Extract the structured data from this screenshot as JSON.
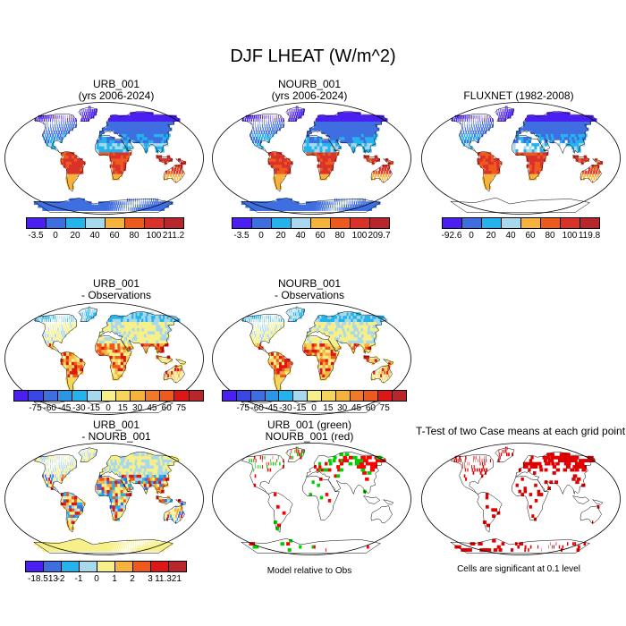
{
  "main_title": "DJF LHEAT (W/m^2)",
  "panels": [
    {
      "id": "p1",
      "title1": "URB_001",
      "title2": "(yrs 2006-2024)",
      "scheme": "abs",
      "colorbar": {
        "ticks": [
          "-3.5",
          "0",
          "20",
          "40",
          "60",
          "80",
          "100",
          "211.2"
        ],
        "colors": [
          "#4b1ef2",
          "#3f6ee0",
          "#24b3ec",
          "#a8d8ec",
          "#f5b23c",
          "#ee5a1e",
          "#d9322a",
          "#b8262b"
        ]
      }
    },
    {
      "id": "p2",
      "title1": "NOURB_001",
      "title2": "(yrs 2006-2024)",
      "scheme": "abs",
      "colorbar": {
        "ticks": [
          "-3.5",
          "0",
          "20",
          "40",
          "60",
          "80",
          "100",
          "209.7"
        ],
        "colors": [
          "#4b1ef2",
          "#3f6ee0",
          "#24b3ec",
          "#a8d8ec",
          "#f5b23c",
          "#ee5a1e",
          "#d9322a",
          "#b8262b"
        ]
      }
    },
    {
      "id": "p3",
      "title1": "FLUXNET (1982-2008)",
      "title2": "",
      "scheme": "abs-obs",
      "colorbar": {
        "ticks": [
          "-92.6",
          "0",
          "20",
          "40",
          "60",
          "80",
          "100",
          "119.8"
        ],
        "colors": [
          "#4b1ef2",
          "#3f6ee0",
          "#24b3ec",
          "#a8d8ec",
          "#f5b23c",
          "#ee5a1e",
          "#d9322a",
          "#b8262b"
        ]
      }
    },
    {
      "id": "p4",
      "title1": "URB_001",
      "title2": "- Observations",
      "scheme": "diff",
      "colorbar": {
        "ticks": [
          "-75",
          "-60",
          "-45",
          "-30",
          "-15",
          "0",
          "15",
          "30",
          "45",
          "60",
          "75"
        ],
        "colors": [
          "#4b1ef2",
          "#3a46e6",
          "#3f6ee0",
          "#2b95e6",
          "#24b3ec",
          "#a8d8ec",
          "#f7f08a",
          "#f5d65a",
          "#f5b23c",
          "#ee7a2a",
          "#ee5a1e",
          "#dd1616",
          "#b8262b"
        ]
      }
    },
    {
      "id": "p5",
      "title1": "NOURB_001",
      "title2": "- Observations",
      "scheme": "diff",
      "colorbar": {
        "ticks": [
          "-75",
          "-60",
          "-45",
          "-30",
          "-15",
          "0",
          "15",
          "30",
          "45",
          "60",
          "75"
        ],
        "colors": [
          "#4b1ef2",
          "#3a46e6",
          "#3f6ee0",
          "#2b95e6",
          "#24b3ec",
          "#a8d8ec",
          "#f7f08a",
          "#f5d65a",
          "#f5b23c",
          "#ee7a2a",
          "#ee5a1e",
          "#dd1616",
          "#b8262b"
        ]
      }
    },
    {
      "id": "p7",
      "title1": "URB_001",
      "title2": "- NOURB_001",
      "scheme": "ddiff",
      "colorbar": {
        "ticks": [
          "-18.513",
          "-2",
          "-1",
          "0",
          "1",
          "2",
          "3",
          "11.321"
        ],
        "colors": [
          "#4b1ef2",
          "#3f6ee0",
          "#24b3ec",
          "#a8d8ec",
          "#f7f08a",
          "#f5b23c",
          "#ee5a1e",
          "#dd1616",
          "#b8262b"
        ]
      }
    },
    {
      "id": "p8",
      "title1": "URB_001 (green)",
      "title2": "NOURB_001 (red)",
      "scheme": "gr",
      "note": "Model relative to Obs"
    },
    {
      "id": "p9",
      "title1": "T-Test of two Case means at each grid point",
      "title2": "",
      "scheme": "tt",
      "note": "Cells are significant at 0.1 level"
    }
  ]
}
